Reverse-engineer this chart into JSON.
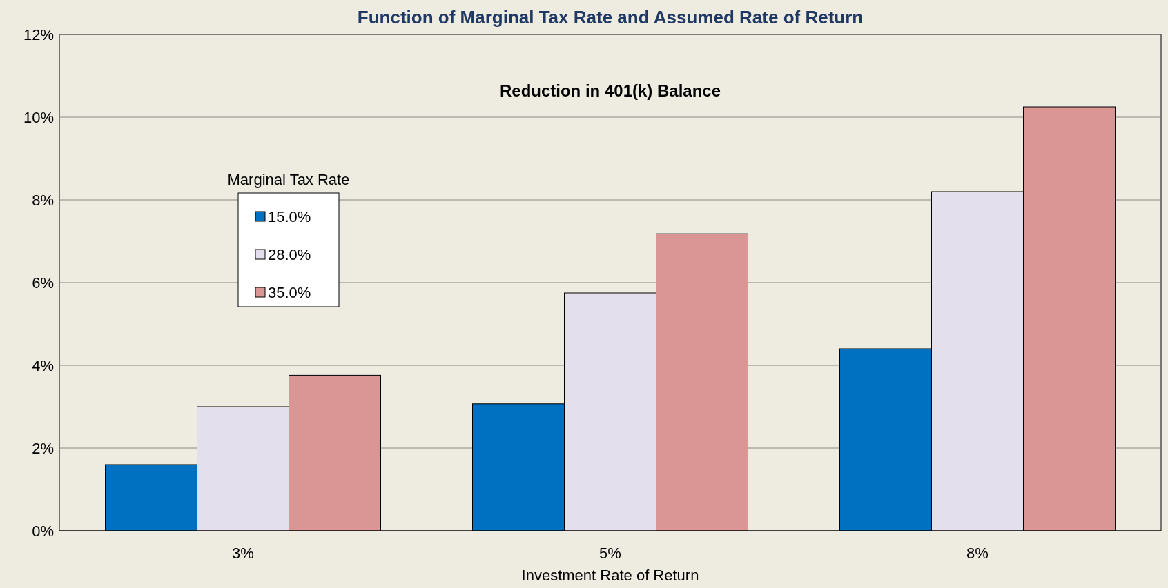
{
  "chart_data": {
    "type": "bar",
    "title": "Function of Marginal Tax Rate and Assumed Rate of Return",
    "subtitle": "Reduction in 401(k) Balance",
    "xlabel": "Investment  Rate of Return",
    "legend_title": "Marginal Tax Rate",
    "categories": [
      "3%",
      "5%",
      "8%"
    ],
    "series": [
      {
        "name": "15.0%",
        "color": "#0070c0",
        "values": [
          1.6,
          3.07,
          4.4
        ]
      },
      {
        "name": "28.0%",
        "color": "#e4dfec",
        "values": [
          3.0,
          5.75,
          8.2
        ]
      },
      {
        "name": "35.0%",
        "color": "#da9694",
        "values": [
          3.76,
          7.18,
          10.25
        ]
      }
    ],
    "ylim": [
      0,
      12
    ],
    "yticks": [
      {
        "value": 0,
        "label": "0%"
      },
      {
        "value": 2,
        "label": "2%"
      },
      {
        "value": 4,
        "label": "4%"
      },
      {
        "value": 6,
        "label": "6%"
      },
      {
        "value": 8,
        "label": "8%"
      },
      {
        "value": 10,
        "label": "10%"
      },
      {
        "value": 12,
        "label": "12%"
      }
    ],
    "grid": "y",
    "legend": "top left"
  }
}
